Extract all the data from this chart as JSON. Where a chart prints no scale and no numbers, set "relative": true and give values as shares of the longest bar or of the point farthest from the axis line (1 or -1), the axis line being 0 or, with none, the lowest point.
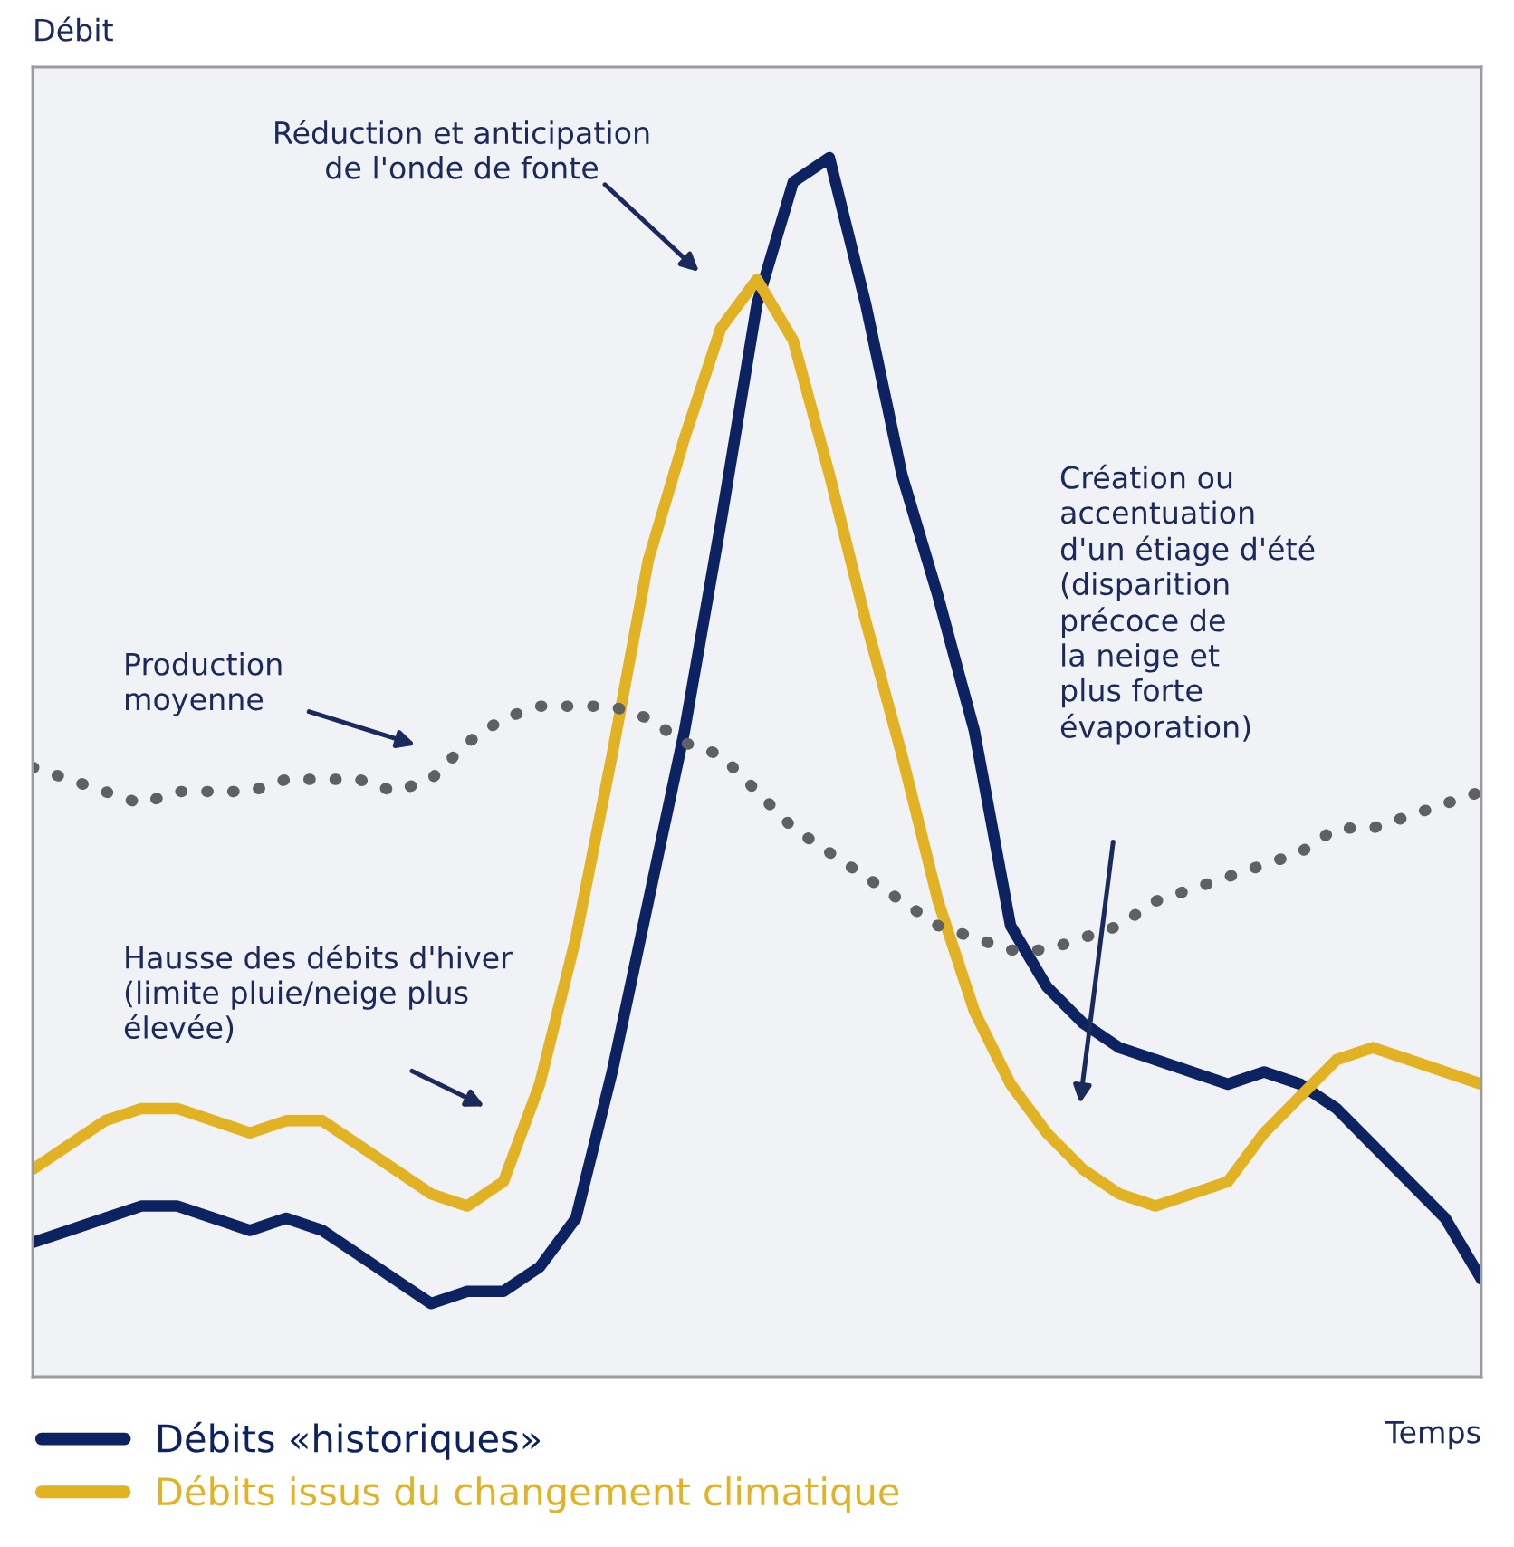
{
  "chart_data": {
    "type": "line",
    "relative": true,
    "xlabel": "Temps",
    "ylabel": "Débit",
    "categories": [
      null,
      null,
      null,
      null,
      null,
      null,
      null,
      null,
      null,
      null,
      null,
      null,
      null,
      null,
      null,
      null,
      null,
      null,
      null,
      null,
      null,
      null,
      null,
      null,
      null,
      null,
      null,
      null,
      null,
      null,
      null,
      null,
      null,
      null,
      null,
      null,
      null,
      null,
      null,
      null,
      null
    ],
    "series": [
      {
        "name": "Débits «historiques»",
        "color": "#0d2260",
        "line_style": "solid",
        "values": [
          0.11,
          0.12,
          0.13,
          0.14,
          0.14,
          0.13,
          0.12,
          0.13,
          0.12,
          0.1,
          0.08,
          0.06,
          0.07,
          0.07,
          0.09,
          0.13,
          0.25,
          0.39,
          0.53,
          0.7,
          0.88,
          0.98,
          1,
          0.88,
          0.74,
          0.64,
          0.53,
          0.37,
          0.32,
          0.29,
          0.27,
          0.26,
          0.25,
          0.24,
          0.25,
          0.24,
          0.22,
          0.19,
          0.16,
          0.13,
          0.08
        ]
      },
      {
        "name": "Débits issus du changement climatique",
        "color": "#e0b224",
        "line_style": "solid",
        "values": [
          0.17,
          0.19,
          0.21,
          0.22,
          0.22,
          0.21,
          0.2,
          0.21,
          0.21,
          0.19,
          0.17,
          0.15,
          0.14,
          0.16,
          0.24,
          0.36,
          0.51,
          0.67,
          0.77,
          0.86,
          0.9,
          0.85,
          0.74,
          0.62,
          0.51,
          0.39,
          0.3,
          0.24,
          0.2,
          0.17,
          0.15,
          0.14,
          0.15,
          0.16,
          0.2,
          0.23,
          0.26,
          0.27,
          0.26,
          0.25,
          0.24
        ]
      },
      {
        "color": "#5f6062",
        "line_style": "dotted",
        "values": [
          0.5,
          0.49,
          0.48,
          0.47,
          0.48,
          0.48,
          0.48,
          0.49,
          0.49,
          0.49,
          0.48,
          0.49,
          0.52,
          0.54,
          0.55,
          0.55,
          0.55,
          0.54,
          0.52,
          0.51,
          0.48,
          0.45,
          0.43,
          0.41,
          0.39,
          0.37,
          0.36,
          0.35,
          0.35,
          0.36,
          0.37,
          0.39,
          0.4,
          0.41,
          0.42,
          0.43,
          0.45,
          0.45,
          0.46,
          0.47,
          0.48
        ]
      }
    ],
    "annotations": [
      "Réduction et anticipation\nde l'onde de fonte",
      "Production\nmoyenne",
      "Hausse des débits d'hiver\n(limite pluie/neige plus\nélevée)",
      "Création ou\naccentuation\nd'un étiage d'été\n(disparition\nprécoce de\nla neige et\nplus forte\névaporation)"
    ],
    "legend": "bottom",
    "marker": "none"
  }
}
